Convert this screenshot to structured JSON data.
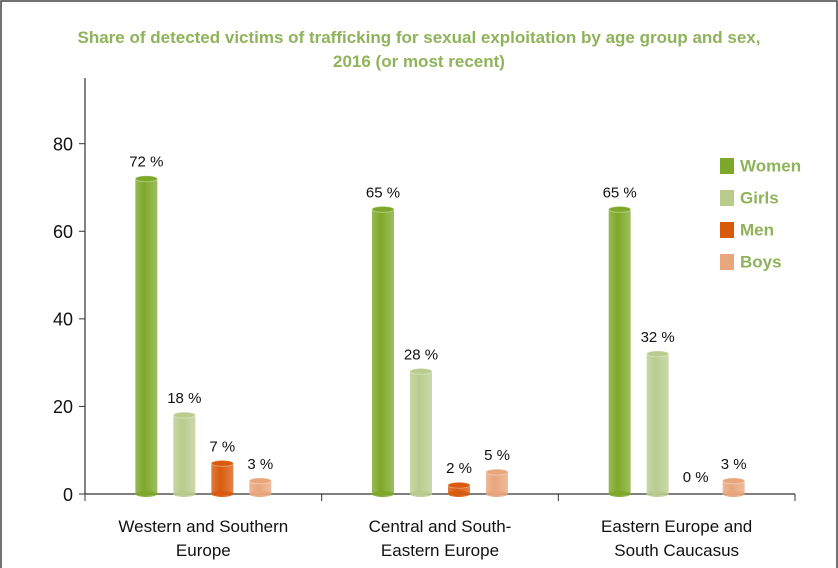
{
  "chart_data": {
    "type": "bar",
    "title": "Share of detected victims of trafficking for sexual exploitation by age group and sex, 2016 (or most recent)",
    "categories": [
      "Western and Southern Europe",
      "Central and South-Eastern Europe",
      "Eastern Europe and South Caucasus"
    ],
    "series": [
      {
        "name": "Women",
        "color": "#7ea82a",
        "values": [
          72,
          65,
          65
        ],
        "value_labels": [
          "72 %",
          "65 %",
          "65 %"
        ]
      },
      {
        "name": "Girls",
        "color": "#b9cc8e",
        "values": [
          18,
          28,
          32
        ],
        "value_labels": [
          "18 %",
          "28 %",
          "32 %"
        ]
      },
      {
        "name": "Men",
        "color": "#d95a0c",
        "values": [
          7,
          2,
          0
        ],
        "value_labels": [
          "7 %",
          "2 %",
          "0 %"
        ]
      },
      {
        "name": "Boys",
        "color": "#e8a67c",
        "values": [
          3,
          5,
          3
        ],
        "value_labels": [
          "3 %",
          "5 %",
          "3 %"
        ]
      }
    ],
    "ylim": [
      0,
      95
    ],
    "yticks": [
      0,
      20,
      40,
      60,
      80
    ],
    "legend": "upper right"
  }
}
